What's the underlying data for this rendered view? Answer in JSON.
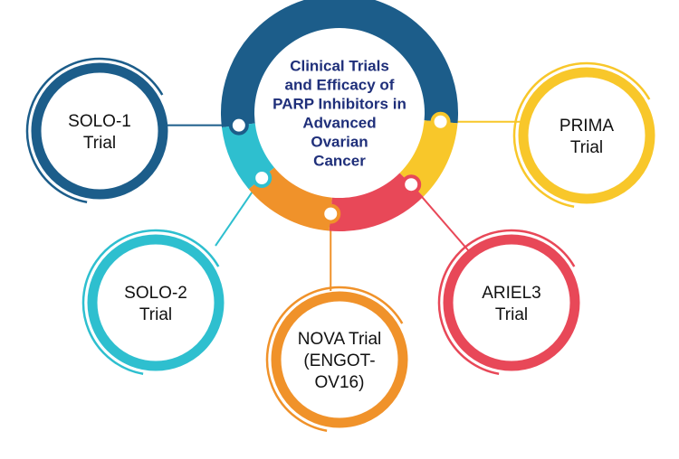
{
  "center": {
    "title_lines": [
      "Clinical Trials",
      "and Efficacy of",
      "PARP Inhibitors in",
      "Advanced",
      "Ovarian",
      "Cancer"
    ]
  },
  "nodes": [
    {
      "lines": [
        "SOLO-1",
        "Trial"
      ]
    },
    {
      "lines": [
        "PRIMA",
        "Trial"
      ]
    },
    {
      "lines": [
        "SOLO-2",
        "Trial"
      ]
    },
    {
      "lines": [
        "ARIEL3",
        "Trial"
      ]
    },
    {
      "lines": [
        "NOVA Trial",
        "(ENGOT-",
        "OV16)"
      ]
    }
  ]
}
